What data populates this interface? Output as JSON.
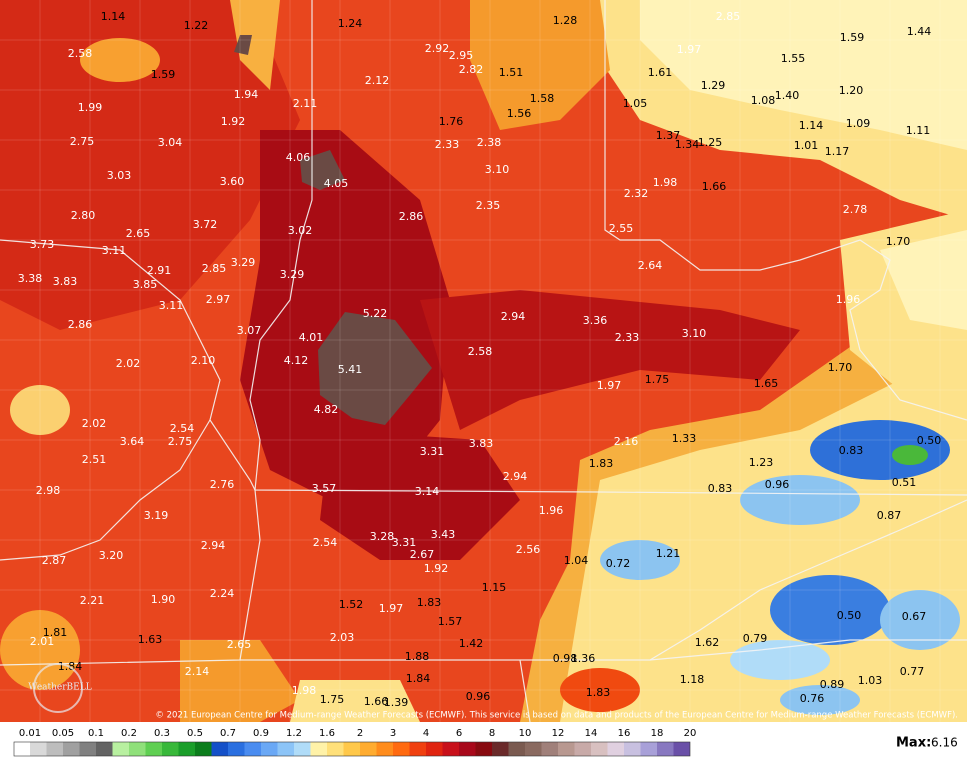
{
  "map": {
    "labels": [
      "1.14",
      "1.22",
      "1.24",
      "1.28",
      "2.85",
      "1.59",
      "1.44",
      "2.58",
      "1.59",
      "2.92",
      "2.95",
      "2.82",
      "1.51",
      "1.97",
      "1.55",
      "1.61",
      "1.29",
      "1.40",
      "1.20",
      "1.08",
      "1.99",
      "1.94",
      "2.12",
      "2.11",
      "1.58",
      "1.56",
      "1.05",
      "1.76",
      "1.92",
      "1.14",
      "1.09",
      "1.11",
      "2.75",
      "3.04",
      "2.33",
      "2.38",
      "1.37",
      "1.34",
      "1.25",
      "1.01",
      "1.17",
      "4.06",
      "3.03",
      "3.60",
      "4.05",
      "3.10",
      "1.98",
      "1.66",
      "2.32",
      "2.80",
      "3.72",
      "2.86",
      "2.35",
      "2.78",
      "3.73",
      "2.65",
      "3.02",
      "2.55",
      "1.70",
      "3.11",
      "2.91",
      "2.85",
      "3.29",
      "3.29",
      "2.64",
      "3.38",
      "3.83",
      "3.85",
      "2.97",
      "1.96",
      "3.11",
      "5.22",
      "2.94",
      "3.36",
      "2.86",
      "3.07",
      "4.01",
      "2.33",
      "3.10",
      "4.12",
      "5.41",
      "2.58",
      "2.02",
      "2.10",
      "1.97",
      "1.75",
      "1.65",
      "1.70",
      "4.82",
      "2.02",
      "2.54",
      "3.64",
      "2.75",
      "3.31",
      "3.83",
      "2.16",
      "1.33",
      "0.83",
      "0.50",
      "2.51",
      "1.83",
      "1.23",
      "2.94",
      "0.51",
      "2.98",
      "2.76",
      "3.57",
      "3.14",
      "0.83",
      "0.96",
      "3.19",
      "1.96",
      "0.87",
      "3.28",
      "3.31",
      "3.43",
      "2.94",
      "2.54",
      "2.56",
      "2.87",
      "3.20",
      "2.67",
      "1.04",
      "0.72",
      "1.21",
      "1.92",
      "1.15",
      "2.21",
      "1.90",
      "2.24",
      "1.52",
      "1.97",
      "1.83",
      "1.81",
      "2.01",
      "1.63",
      "1.57",
      "2.03",
      "2.65",
      "1.42",
      "1.62",
      "0.79",
      "0.50",
      "0.67",
      "1.84",
      "2.14",
      "1.88",
      "0.98",
      "1.36",
      "0.77",
      "1.84",
      "1.18",
      "0.89",
      "1.03",
      "1.98",
      "0.96",
      "1.83",
      "1.75",
      "1.66",
      "1.39",
      "0.76"
    ],
    "copyright": "© 2021 European Centre for Medium-range Weather Forecasts (ECMWF). This service is based on data and products of the European Centre for Medium-range Weather Forecasts (ECMWF).",
    "logo": "WeatherBELL",
    "legend": [
      "0.01",
      "0.05",
      "0.1",
      "0.2",
      "0.3",
      "0.5",
      "0.7",
      "0.9",
      "1.2",
      "1.6",
      "2",
      "3",
      "4",
      "6",
      "8",
      "10",
      "12",
      "14",
      "16",
      "18",
      "20"
    ],
    "max": {
      "label": "Max:",
      "value": "6.16"
    }
  }
}
